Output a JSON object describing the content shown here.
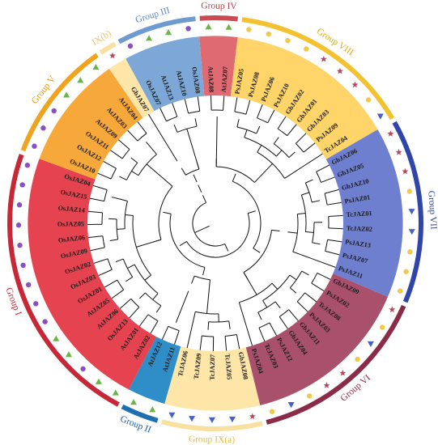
{
  "diagram": {
    "type": "circular-phylogenetic-tree",
    "groups": [
      {
        "key": "IV",
        "label": "Group IV",
        "color": "#e06a72",
        "ring": "#c84a55",
        "text": "#c0424d"
      },
      {
        "key": "VIII",
        "label": "Group VIII",
        "color": "#ffd56a",
        "ring": "#f3c230",
        "text": "#e0ac1a"
      },
      {
        "key": "VII",
        "label": "Group VII",
        "color": "#6f7fd0",
        "ring": "#2f45a8",
        "text": "#2f45a8"
      },
      {
        "key": "VI",
        "label": "Group VI",
        "color": "#a8506c",
        "ring": "#8c2b48",
        "text": "#8c2b48"
      },
      {
        "key": "IXa",
        "label": "Group IX(a)",
        "color": "#fde6a8",
        "ring": "#f7e0a0",
        "text": "#e7b840"
      },
      {
        "key": "II",
        "label": "Group II",
        "color": "#2f8ec8",
        "ring": "#1f6fb0",
        "text": "#1f5ea0"
      },
      {
        "key": "I",
        "label": "Group I",
        "color": "#e5434f",
        "ring": "#c62838",
        "text": "#c62838"
      },
      {
        "key": "V",
        "label": "Group V",
        "color": "#f7a83a",
        "ring": "#f0a31c",
        "text": "#e89a10"
      },
      {
        "key": "IXb",
        "label": "IX(b)",
        "color": "#fde6a8",
        "ring": "#f7e0a0",
        "text": "#eac36a"
      },
      {
        "key": "III",
        "label": "Group III",
        "color": "#7ca7d6",
        "ring": "#6e9ad2",
        "text": "#5a88c4"
      }
    ],
    "leaves": [
      {
        "name": "AtJAZ08",
        "group": "IV",
        "marker": "triangle"
      },
      {
        "name": "AtJAZ07",
        "group": "IV",
        "marker": "triangle"
      },
      {
        "name": "PsJAZ05",
        "group": "VIII",
        "marker": "circle"
      },
      {
        "name": "PsJAZ08",
        "group": "VIII",
        "marker": "circle"
      },
      {
        "name": "PsJAZ06",
        "group": "VIII",
        "marker": "circle"
      },
      {
        "name": "PsJAZ10",
        "group": "VIII",
        "marker": "circle"
      },
      {
        "name": "GbJAZ02",
        "group": "VIII",
        "marker": "star"
      },
      {
        "name": "GbJAZ01",
        "group": "VIII",
        "marker": "star"
      },
      {
        "name": "GbJAZ03",
        "group": "VIII",
        "marker": "star"
      },
      {
        "name": "PsJAZ09",
        "group": "VIII",
        "marker": "circle"
      },
      {
        "name": "TcJAZ04",
        "group": "VIII",
        "marker": "tri-down"
      },
      {
        "name": "GbJAZ06",
        "group": "VII",
        "marker": "star"
      },
      {
        "name": "GbJAZ05",
        "group": "VII",
        "marker": "star"
      },
      {
        "name": "GbJAZ10",
        "group": "VII",
        "marker": "star"
      },
      {
        "name": "PsJAZ01",
        "group": "VII",
        "marker": "circle"
      },
      {
        "name": "TcJAZ01",
        "group": "VII",
        "marker": "tri-down"
      },
      {
        "name": "TcJAZ02",
        "group": "VII",
        "marker": "tri-down"
      },
      {
        "name": "PsJAZ13",
        "group": "VII",
        "marker": "circle"
      },
      {
        "name": "PsJAZ07",
        "group": "VII",
        "marker": "circle"
      },
      {
        "name": "PsJAZ11",
        "group": "VII",
        "marker": "circle"
      },
      {
        "name": "GbJAZ09",
        "group": "VI",
        "marker": "star"
      },
      {
        "name": "PsJAZ02",
        "group": "VI",
        "marker": "circle"
      },
      {
        "name": "TcJAZ08",
        "group": "VI",
        "marker": "tri-down"
      },
      {
        "name": "PsJAZ03",
        "group": "VI",
        "marker": "circle"
      },
      {
        "name": "GbJAZ11",
        "group": "VI",
        "marker": "star"
      },
      {
        "name": "GbJAZ04",
        "group": "VI",
        "marker": "star"
      },
      {
        "name": "PsJAZ12",
        "group": "VI",
        "marker": "circle"
      },
      {
        "name": "TcJAZ03",
        "group": "VI",
        "marker": "tri-down"
      },
      {
        "name": "PsJAZ04",
        "group": "VI",
        "marker": "circle"
      },
      {
        "name": "GbJAZ08",
        "group": "IXa",
        "marker": "star"
      },
      {
        "name": "TcJAZ05",
        "group": "IXa",
        "marker": "tri-down"
      },
      {
        "name": "TcJAZ07",
        "group": "IXa",
        "marker": "tri-down"
      },
      {
        "name": "TcJAZ09",
        "group": "IXa",
        "marker": "tri-down"
      },
      {
        "name": "TcJAZ06",
        "group": "IXa",
        "marker": "tri-down"
      },
      {
        "name": "AtJAZ11",
        "group": "II",
        "marker": "triangle"
      },
      {
        "name": "AtJAZ12",
        "group": "II",
        "marker": "triangle"
      },
      {
        "name": "AtJAZ02",
        "group": "I",
        "marker": "triangle"
      },
      {
        "name": "AtJAZ01",
        "group": "I",
        "marker": "triangle"
      },
      {
        "name": "OsJAZ13",
        "group": "I",
        "marker": "circle"
      },
      {
        "name": "AtJAZ06",
        "group": "I",
        "marker": "triangle"
      },
      {
        "name": "AtJAZ05",
        "group": "I",
        "marker": "triangle"
      },
      {
        "name": "OsJAZ01",
        "group": "I",
        "marker": "circle"
      },
      {
        "name": "OsJAZ03",
        "group": "I",
        "marker": "circle"
      },
      {
        "name": "OsJAZ02",
        "group": "I",
        "marker": "circle"
      },
      {
        "name": "OsJAZ09",
        "group": "I",
        "marker": "circle"
      },
      {
        "name": "OsJAZ06",
        "group": "I",
        "marker": "circle"
      },
      {
        "name": "OsJAZ05",
        "group": "I",
        "marker": "circle"
      },
      {
        "name": "OsJAZ14",
        "group": "I",
        "marker": "circle"
      },
      {
        "name": "OsJAZ15",
        "group": "I",
        "marker": "circle"
      },
      {
        "name": "OsJAZ04",
        "group": "I",
        "marker": "circle"
      },
      {
        "name": "OsJAZ10",
        "group": "V",
        "marker": "circle"
      },
      {
        "name": "OsJAZ12",
        "group": "V",
        "marker": "circle"
      },
      {
        "name": "OsJAZ11",
        "group": "V",
        "marker": "circle"
      },
      {
        "name": "AtJAZ09",
        "group": "V",
        "marker": "triangle"
      },
      {
        "name": "AtJAZ03",
        "group": "V",
        "marker": "triangle"
      },
      {
        "name": "AtJAZ04",
        "group": "V",
        "marker": "triangle"
      },
      {
        "name": "GbJAZ07",
        "group": "IXb",
        "marker": "star"
      },
      {
        "name": "OsJAZ07",
        "group": "III",
        "marker": "circle"
      },
      {
        "name": "AtJAZ13",
        "group": "III",
        "marker": "triangle"
      },
      {
        "name": "AtJAZ10",
        "group": "III",
        "marker": "triangle"
      },
      {
        "name": "OsJAZ08",
        "group": "III",
        "marker": "circle"
      }
    ],
    "marker_colors": {
      "triangle": "#6ab547",
      "circle": "#f2c94c",
      "star": "#b5485c",
      "tri-down": "#4a5fc4",
      "circle-os": "#8a4fc0"
    }
  }
}
